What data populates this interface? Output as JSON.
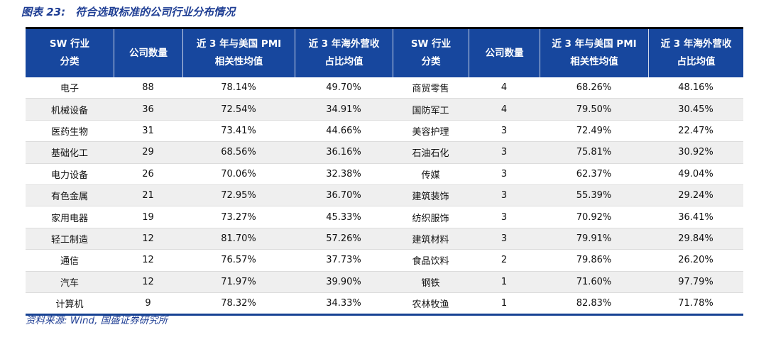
{
  "title": {
    "figure_label": "图表 23:",
    "text": "符合选取标准的公司行业分布情况"
  },
  "footer": {
    "source": "资料来源: Wind, 国盛证券研究所"
  },
  "colors": {
    "header_bg": "#17479E",
    "top_rule": "#000000",
    "bottom_rule": "#164193",
    "alt_row_bg": "#EFEFEF",
    "row_divider": "#DCDCDC",
    "accent_text": "#1F3E94",
    "header_text": "#FFFFFF"
  },
  "table": {
    "headers": [
      {
        "top": "SW 行业",
        "bottom": "分类"
      },
      {
        "top": "公司数量",
        "bottom": ""
      },
      {
        "top": "近 3 年与美国 PMI",
        "bottom": "相关性均值"
      },
      {
        "top": "近 3 年海外营收",
        "bottom": "占比均值"
      },
      {
        "top": "SW 行业",
        "bottom": "分类"
      },
      {
        "top": "公司数量",
        "bottom": ""
      },
      {
        "top": "近 3 年与美国 PMI",
        "bottom": "相关性均值"
      },
      {
        "top": "近 3 年海外营收",
        "bottom": "占比均值"
      }
    ],
    "rows": [
      [
        "电子",
        "88",
        "78.14%",
        "49.70%",
        "商贸零售",
        "4",
        "68.26%",
        "48.16%"
      ],
      [
        "机械设备",
        "36",
        "72.54%",
        "34.91%",
        "国防军工",
        "4",
        "79.50%",
        "30.45%"
      ],
      [
        "医药生物",
        "31",
        "73.41%",
        "44.66%",
        "美容护理",
        "3",
        "72.49%",
        "22.47%"
      ],
      [
        "基础化工",
        "29",
        "68.56%",
        "36.16%",
        "石油石化",
        "3",
        "75.81%",
        "30.92%"
      ],
      [
        "电力设备",
        "26",
        "70.06%",
        "32.38%",
        "传媒",
        "3",
        "62.37%",
        "49.04%"
      ],
      [
        "有色金属",
        "21",
        "72.95%",
        "36.70%",
        "建筑装饰",
        "3",
        "55.39%",
        "29.24%"
      ],
      [
        "家用电器",
        "19",
        "73.27%",
        "45.33%",
        "纺织服饰",
        "3",
        "70.92%",
        "36.41%"
      ],
      [
        "轻工制造",
        "12",
        "81.70%",
        "57.26%",
        "建筑材料",
        "3",
        "79.91%",
        "29.84%"
      ],
      [
        "通信",
        "12",
        "76.57%",
        "37.73%",
        "食品饮料",
        "2",
        "79.86%",
        "26.20%"
      ],
      [
        "汽车",
        "12",
        "71.97%",
        "39.90%",
        "钢铁",
        "1",
        "71.60%",
        "97.79%"
      ],
      [
        "计算机",
        "9",
        "78.32%",
        "34.33%",
        "农林牧渔",
        "1",
        "82.83%",
        "71.78%"
      ]
    ]
  }
}
